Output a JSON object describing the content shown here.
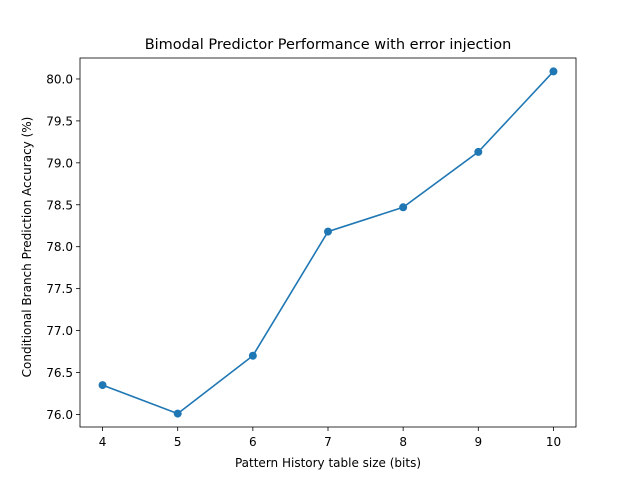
{
  "chart_data": {
    "type": "line",
    "title": "Bimodal Predictor Performance with error injection",
    "xlabel": "Pattern History table size (bits)",
    "ylabel": "Conditional Branch Prediction Accuracy (%)",
    "x": [
      4,
      5,
      6,
      7,
      8,
      9,
      10
    ],
    "y": [
      76.35,
      76.01,
      76.7,
      78.18,
      78.47,
      79.13,
      80.09
    ],
    "xlim": [
      3.7,
      10.3
    ],
    "ylim": [
      75.85,
      80.25
    ],
    "xticks": [
      "4",
      "5",
      "6",
      "7",
      "8",
      "9",
      "10"
    ],
    "yticks": [
      "76.0",
      "76.5",
      "77.0",
      "77.5",
      "78.0",
      "78.5",
      "79.0",
      "79.5",
      "80.0"
    ],
    "grid": false,
    "marker": "circle",
    "colors": {
      "series": "#1f77b4",
      "axes": "#000000",
      "background": "#ffffff"
    }
  }
}
